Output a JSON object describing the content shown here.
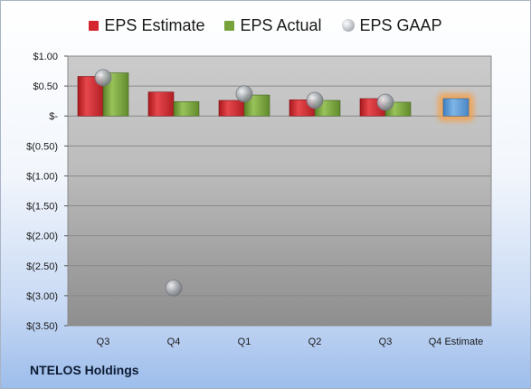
{
  "company": "NTELOS Holdings",
  "colors": {
    "estimate": "#d4272d",
    "actual": "#77a33a",
    "gaap": "#b8bcc2",
    "forecast": "#5b9bd5",
    "forecast_glow": "#f5a04a"
  },
  "chart_data": {
    "type": "bar",
    "categories": [
      "Q3",
      "Q4",
      "Q1",
      "Q2",
      "Q3",
      "Q4 Estimate"
    ],
    "series": [
      {
        "name": "EPS Estimate",
        "type": "bar",
        "values": [
          0.66,
          0.4,
          0.26,
          0.27,
          0.29,
          0.29
        ]
      },
      {
        "name": "EPS Actual",
        "type": "bar",
        "values": [
          0.72,
          0.24,
          0.35,
          0.26,
          0.23,
          null
        ]
      },
      {
        "name": "EPS GAAP",
        "type": "scatter",
        "values": [
          0.64,
          -2.87,
          0.37,
          0.26,
          0.23,
          null
        ]
      }
    ],
    "ylim": [
      -3.5,
      1.0
    ],
    "yticks": [
      1.0,
      0.5,
      0.0,
      -0.5,
      -1.0,
      -1.5,
      -2.0,
      -2.5,
      -3.0,
      -3.5
    ],
    "ytick_labels": [
      "$1.00",
      "$0.50",
      "$-",
      "$(0.50)",
      "$(1.00)",
      "$(1.50)",
      "$(2.00)",
      "$(2.50)",
      "$(3.00)",
      "$(3.50)"
    ],
    "legend": [
      "EPS Estimate",
      "EPS Actual",
      "EPS GAAP"
    ],
    "legend_position": "top",
    "grid": true
  }
}
